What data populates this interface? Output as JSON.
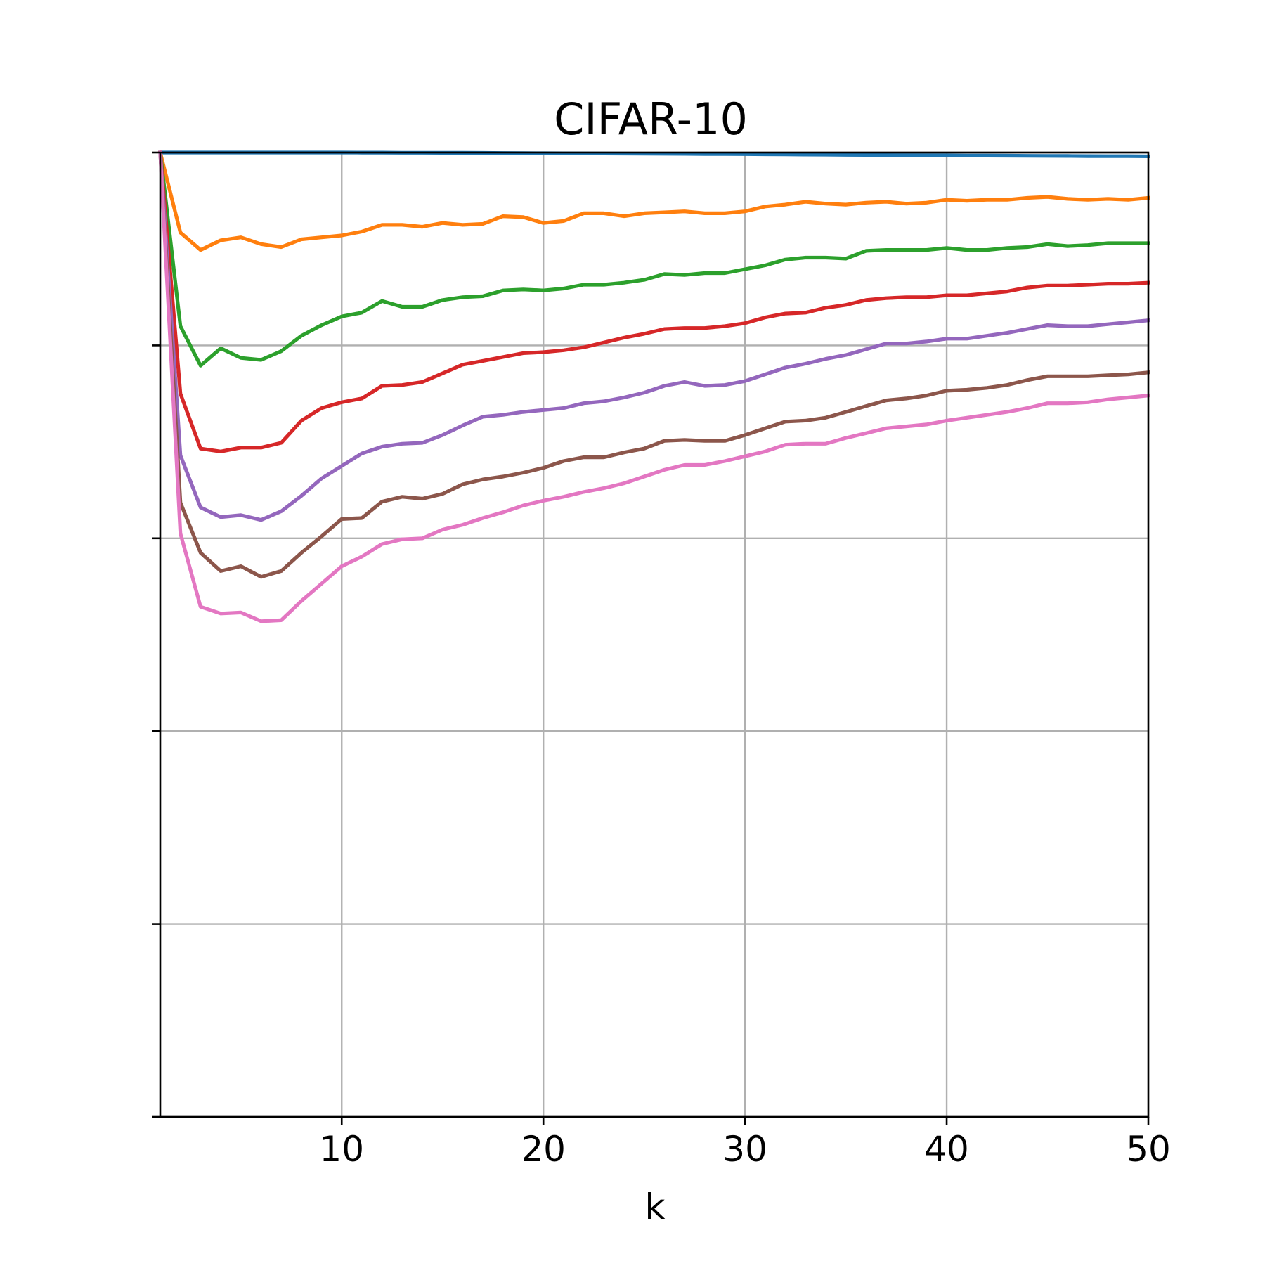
{
  "chart_data": {
    "type": "line",
    "title": "CIFAR-10",
    "xlabel": "k",
    "ylabel": "",
    "xlim": [
      1,
      50
    ],
    "ylim": [
      0,
      1
    ],
    "x_ticks": [
      10,
      20,
      30,
      40,
      50
    ],
    "y_ticks": [
      0.0,
      0.2,
      0.4,
      0.6,
      0.8,
      1.0
    ],
    "y_tick_labels_shown": false,
    "grid": true,
    "legend": "none",
    "x": [
      1,
      2,
      3,
      4,
      5,
      6,
      7,
      8,
      9,
      10,
      11,
      12,
      13,
      14,
      15,
      16,
      17,
      18,
      19,
      20,
      21,
      22,
      23,
      24,
      25,
      26,
      27,
      28,
      29,
      30,
      31,
      32,
      33,
      34,
      35,
      36,
      37,
      38,
      39,
      40,
      41,
      42,
      43,
      44,
      45,
      46,
      47,
      48,
      49,
      50
    ],
    "series": [
      {
        "color": "#1f77b4",
        "values": [
          1.0,
          1.0,
          1.0,
          1.0,
          1.0,
          1.0,
          1.0,
          1.0,
          1.0,
          1.0,
          0.9999,
          0.9999,
          0.9998,
          0.9998,
          0.9997,
          0.9997,
          0.9996,
          0.9995,
          0.9994,
          0.9993,
          0.9992,
          0.9991,
          0.999,
          0.9989,
          0.9988,
          0.9987,
          0.9986,
          0.9985,
          0.9984,
          0.9983,
          0.9982,
          0.998,
          0.9979,
          0.9978,
          0.9976,
          0.9975,
          0.9974,
          0.9972,
          0.9971,
          0.997,
          0.9969,
          0.9968,
          0.9967,
          0.9966,
          0.9965,
          0.9964,
          0.9963,
          0.9962,
          0.9962,
          0.9961
        ]
      },
      {
        "color": "#ff7f0e",
        "values": [
          1.0,
          0.917,
          0.899,
          0.909,
          0.912,
          0.905,
          0.902,
          0.91,
          0.912,
          0.914,
          0.918,
          0.925,
          0.925,
          0.923,
          0.927,
          0.925,
          0.926,
          0.934,
          0.933,
          0.927,
          0.929,
          0.937,
          0.937,
          0.934,
          0.937,
          0.938,
          0.939,
          0.937,
          0.937,
          0.939,
          0.944,
          0.946,
          0.949,
          0.947,
          0.946,
          0.948,
          0.949,
          0.947,
          0.948,
          0.951,
          0.95,
          0.951,
          0.951,
          0.953,
          0.954,
          0.952,
          0.951,
          0.952,
          0.951,
          0.953
        ]
      },
      {
        "color": "#2ca02c",
        "values": [
          1.0,
          0.82,
          0.779,
          0.797,
          0.787,
          0.785,
          0.794,
          0.81,
          0.821,
          0.83,
          0.834,
          0.846,
          0.84,
          0.84,
          0.847,
          0.85,
          0.851,
          0.857,
          0.858,
          0.857,
          0.859,
          0.863,
          0.863,
          0.865,
          0.868,
          0.874,
          0.873,
          0.875,
          0.875,
          0.879,
          0.883,
          0.889,
          0.891,
          0.891,
          0.89,
          0.898,
          0.899,
          0.899,
          0.899,
          0.901,
          0.899,
          0.899,
          0.901,
          0.902,
          0.905,
          0.903,
          0.904,
          0.906,
          0.906,
          0.906
        ]
      },
      {
        "color": "#d62728",
        "values": [
          1.0,
          0.75,
          0.693,
          0.69,
          0.694,
          0.694,
          0.699,
          0.722,
          0.735,
          0.741,
          0.745,
          0.758,
          0.759,
          0.762,
          0.771,
          0.78,
          0.784,
          0.788,
          0.792,
          0.793,
          0.795,
          0.798,
          0.803,
          0.808,
          0.812,
          0.817,
          0.818,
          0.818,
          0.82,
          0.823,
          0.829,
          0.833,
          0.834,
          0.839,
          0.842,
          0.847,
          0.849,
          0.85,
          0.85,
          0.852,
          0.852,
          0.854,
          0.856,
          0.86,
          0.862,
          0.862,
          0.863,
          0.864,
          0.864,
          0.865
        ]
      },
      {
        "color": "#9467bd",
        "values": [
          1.0,
          0.686,
          0.632,
          0.622,
          0.624,
          0.619,
          0.628,
          0.644,
          0.662,
          0.675,
          0.688,
          0.695,
          0.698,
          0.699,
          0.707,
          0.717,
          0.726,
          0.728,
          0.731,
          0.733,
          0.735,
          0.74,
          0.742,
          0.746,
          0.751,
          0.758,
          0.762,
          0.758,
          0.759,
          0.763,
          0.77,
          0.777,
          0.781,
          0.786,
          0.79,
          0.796,
          0.802,
          0.802,
          0.804,
          0.807,
          0.807,
          0.81,
          0.813,
          0.817,
          0.821,
          0.82,
          0.82,
          0.822,
          0.824,
          0.826
        ]
      },
      {
        "color": "#8c564b",
        "values": [
          1.0,
          0.637,
          0.585,
          0.566,
          0.571,
          0.56,
          0.566,
          0.585,
          0.602,
          0.62,
          0.621,
          0.638,
          0.643,
          0.641,
          0.646,
          0.656,
          0.661,
          0.664,
          0.668,
          0.673,
          0.68,
          0.684,
          0.684,
          0.689,
          0.693,
          0.701,
          0.702,
          0.701,
          0.701,
          0.707,
          0.714,
          0.721,
          0.722,
          0.725,
          0.731,
          0.737,
          0.743,
          0.745,
          0.748,
          0.753,
          0.754,
          0.756,
          0.759,
          0.764,
          0.768,
          0.768,
          0.768,
          0.769,
          0.77,
          0.772
        ]
      },
      {
        "color": "#e377c2",
        "values": [
          1.0,
          0.605,
          0.529,
          0.522,
          0.523,
          0.514,
          0.515,
          0.535,
          0.553,
          0.571,
          0.581,
          0.594,
          0.599,
          0.6,
          0.609,
          0.614,
          0.621,
          0.627,
          0.634,
          0.639,
          0.643,
          0.648,
          0.652,
          0.657,
          0.664,
          0.671,
          0.676,
          0.676,
          0.68,
          0.685,
          0.69,
          0.697,
          0.698,
          0.698,
          0.704,
          0.709,
          0.714,
          0.716,
          0.718,
          0.722,
          0.725,
          0.728,
          0.731,
          0.735,
          0.74,
          0.74,
          0.741,
          0.744,
          0.746,
          0.748
        ]
      }
    ]
  }
}
